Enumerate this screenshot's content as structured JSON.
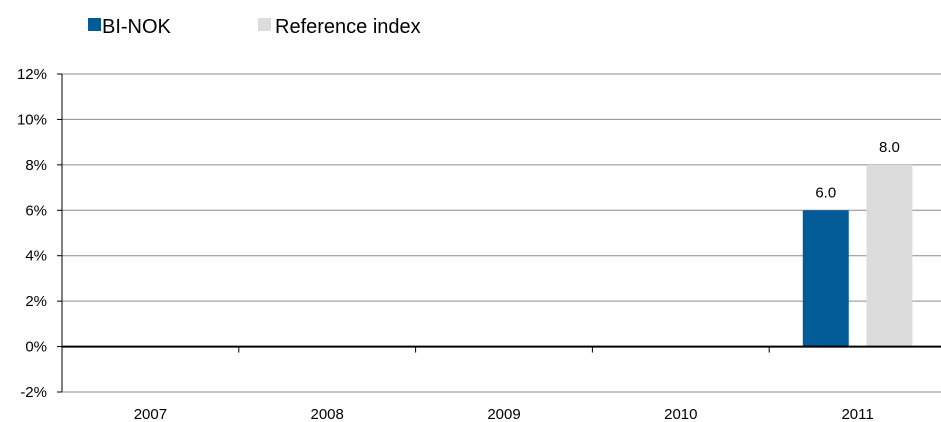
{
  "chart_data": {
    "type": "bar",
    "categories": [
      "2007",
      "2008",
      "2009",
      "2010",
      "2011"
    ],
    "series": [
      {
        "name": "BI-NOK",
        "values": [
          null,
          null,
          null,
          null,
          6.0
        ],
        "labels": [
          "",
          "",
          "",
          "",
          "6.0"
        ],
        "color": "#005b96"
      },
      {
        "name": "Reference index",
        "values": [
          null,
          null,
          null,
          null,
          8.0
        ],
        "labels": [
          "",
          "",
          "",
          "",
          "8.0"
        ],
        "color": "#dcdcdc"
      }
    ],
    "y_ticks": [
      "-2%",
      "0%",
      "2%",
      "4%",
      "6%",
      "8%",
      "10%",
      "12%"
    ],
    "ylim": [
      -2,
      12
    ],
    "grid": true,
    "legend_position": "top-left"
  }
}
